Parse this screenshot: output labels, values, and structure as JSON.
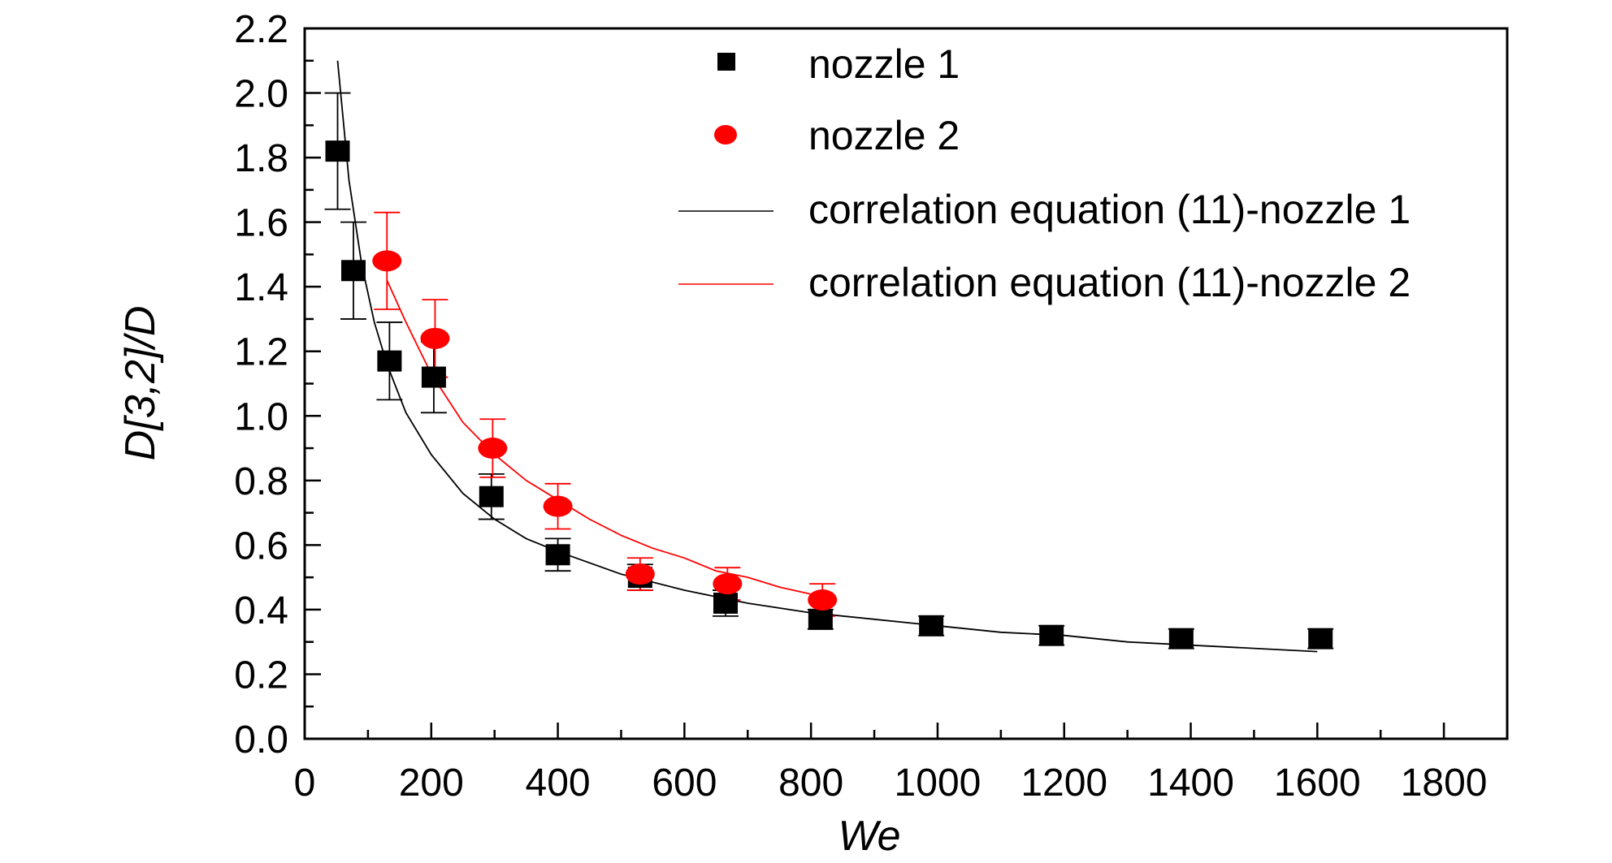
{
  "chart_data": {
    "type": "scatter",
    "title": "",
    "xlabel": "We",
    "ylabel": "D[3,2]/D",
    "xlim": [
      0,
      1900
    ],
    "ylim": [
      0,
      2.2
    ],
    "x_ticks": [
      0,
      200,
      400,
      600,
      800,
      1000,
      1200,
      1400,
      1600,
      1800
    ],
    "y_ticks": [
      "0.0",
      "0.2",
      "0.4",
      "0.6",
      "0.8",
      "1.0",
      "1.2",
      "1.4",
      "1.6",
      "1.8",
      "2.0",
      "2.2"
    ],
    "grid": false,
    "legend_position": "top-right",
    "series": [
      {
        "name": "nozzle 1",
        "marker": "square",
        "color": "#000000",
        "x": [
          52,
          77,
          134,
          204,
          295,
          400,
          530,
          665,
          815,
          990,
          1180,
          1385,
          1605
        ],
        "y": [
          1.82,
          1.45,
          1.17,
          1.12,
          0.75,
          0.57,
          0.5,
          0.42,
          0.37,
          0.35,
          0.32,
          0.31,
          0.31
        ],
        "err": [
          0.18,
          0.15,
          0.12,
          0.11,
          0.07,
          0.05,
          0.04,
          0.04,
          0.03,
          0.03,
          0.03,
          0.03,
          0.03
        ]
      },
      {
        "name": "nozzle 2",
        "marker": "circle",
        "color": "#ff0000",
        "x": [
          130,
          206,
          297,
          400,
          530,
          668,
          818
        ],
        "y": [
          1.48,
          1.24,
          0.9,
          0.72,
          0.51,
          0.48,
          0.43
        ],
        "err": [
          0.15,
          0.12,
          0.09,
          0.07,
          0.05,
          0.05,
          0.05
        ]
      }
    ],
    "fit_lines": [
      {
        "name": "correlation equation (11)-nozzle 1",
        "color": "#000000",
        "x": [
          52,
          70,
          90,
          110,
          130,
          160,
          200,
          250,
          300,
          350,
          400,
          500,
          600,
          700,
          800,
          900,
          1000,
          1100,
          1200,
          1300,
          1400,
          1500,
          1600
        ],
        "y": [
          2.1,
          1.73,
          1.47,
          1.29,
          1.16,
          1.01,
          0.88,
          0.76,
          0.68,
          0.62,
          0.58,
          0.51,
          0.46,
          0.42,
          0.39,
          0.37,
          0.35,
          0.33,
          0.32,
          0.3,
          0.29,
          0.28,
          0.27
        ]
      },
      {
        "name": "correlation equation (11)-nozzle 2",
        "color": "#ff0000",
        "x": [
          130,
          160,
          200,
          250,
          300,
          350,
          400,
          450,
          500,
          550,
          600,
          650,
          700,
          750,
          818
        ],
        "y": [
          1.42,
          1.29,
          1.13,
          0.98,
          0.88,
          0.8,
          0.74,
          0.68,
          0.63,
          0.59,
          0.56,
          0.52,
          0.5,
          0.47,
          0.44
        ]
      }
    ]
  }
}
